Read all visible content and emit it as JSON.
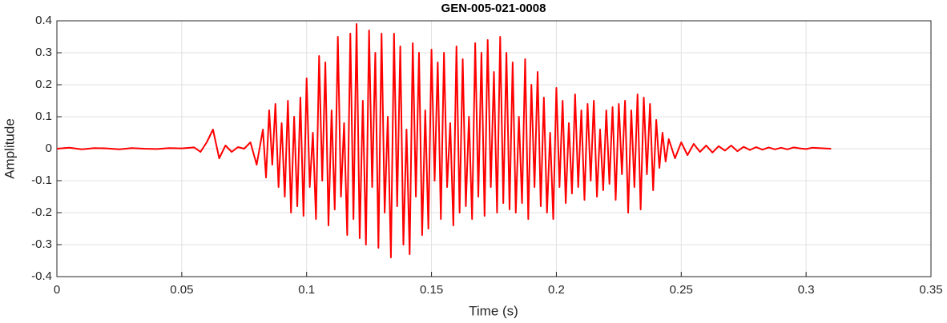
{
  "chart_data": {
    "type": "line",
    "title": "GEN-005-021-0008",
    "xlabel": "Time (s)",
    "ylabel": "Amplitude",
    "grid": true,
    "xlim": [
      0,
      0.35
    ],
    "xticks": [
      0,
      0.05,
      0.1,
      0.15,
      0.2,
      0.25,
      0.3,
      0.35
    ],
    "ylim": [
      -0.4,
      0.4
    ],
    "yticks": [
      -0.4,
      -0.3,
      -0.2,
      -0.1,
      0,
      0.1,
      0.2,
      0.3,
      0.4
    ],
    "x": [
      0,
      0.005,
      0.01,
      0.015,
      0.02,
      0.025,
      0.03,
      0.035,
      0.04,
      0.045,
      0.05,
      0.055,
      0.0575,
      0.06,
      0.0625,
      0.065,
      0.0675,
      0.07,
      0.0725,
      0.075,
      0.0775,
      0.08,
      0.0825,
      0.08375,
      0.085,
      0.08625,
      0.0875,
      0.08875,
      0.09,
      0.09125,
      0.0925,
      0.09375,
      0.095,
      0.09625,
      0.0975,
      0.09875,
      0.1,
      0.10125,
      0.1025,
      0.10375,
      0.105,
      0.10625,
      0.1075,
      0.10875,
      0.11,
      0.11125,
      0.1125,
      0.11375,
      0.115,
      0.11625,
      0.1175,
      0.11875,
      0.12,
      0.12125,
      0.1225,
      0.12375,
      0.125,
      0.12625,
      0.1275,
      0.12875,
      0.13,
      0.13125,
      0.1325,
      0.13375,
      0.135,
      0.13625,
      0.1375,
      0.13875,
      0.14,
      0.14125,
      0.1425,
      0.14375,
      0.145,
      0.14625,
      0.1475,
      0.14875,
      0.15,
      0.15125,
      0.1525,
      0.15375,
      0.155,
      0.15625,
      0.1575,
      0.15875,
      0.16,
      0.16125,
      0.1625,
      0.16375,
      0.165,
      0.16625,
      0.1675,
      0.16875,
      0.17,
      0.17125,
      0.1725,
      0.17375,
      0.175,
      0.17625,
      0.1775,
      0.17875,
      0.18,
      0.18125,
      0.1825,
      0.18375,
      0.185,
      0.18625,
      0.1875,
      0.18875,
      0.19,
      0.19125,
      0.1925,
      0.19375,
      0.195,
      0.19625,
      0.1975,
      0.19875,
      0.2,
      0.20125,
      0.2025,
      0.20375,
      0.205,
      0.20625,
      0.2075,
      0.20875,
      0.21,
      0.21125,
      0.2125,
      0.21375,
      0.215,
      0.21625,
      0.2175,
      0.21875,
      0.22,
      0.22125,
      0.2225,
      0.22375,
      0.225,
      0.22625,
      0.2275,
      0.22875,
      0.23,
      0.23125,
      0.2325,
      0.23375,
      0.235,
      0.23625,
      0.2375,
      0.23875,
      0.24,
      0.24125,
      0.2425,
      0.24375,
      0.245,
      0.2475,
      0.25,
      0.2525,
      0.255,
      0.2575,
      0.26,
      0.2625,
      0.265,
      0.2675,
      0.27,
      0.2725,
      0.275,
      0.2775,
      0.28,
      0.2825,
      0.285,
      0.2875,
      0.29,
      0.2925,
      0.295,
      0.2975,
      0.3,
      0.3025,
      0.305,
      0.3075,
      0.31
    ],
    "series": [
      {
        "name": "Amplitude",
        "color": "#ff0000",
        "values": [
          0,
          0.003,
          -0.002,
          0.002,
          0.001,
          -0.002,
          0.002,
          0,
          -0.001,
          0.002,
          0.001,
          0.004,
          -0.01,
          0.02,
          0.06,
          -0.03,
          0.01,
          -0.01,
          0.005,
          0,
          0.02,
          -0.05,
          0.06,
          -0.09,
          0.12,
          -0.05,
          0.14,
          -0.12,
          0.08,
          -0.15,
          0.15,
          -0.2,
          0.1,
          -0.18,
          0.16,
          -0.21,
          0.22,
          -0.12,
          0.05,
          -0.22,
          0.29,
          -0.1,
          0.27,
          -0.24,
          0.12,
          -0.19,
          0.35,
          -0.15,
          0.08,
          -0.27,
          0.36,
          -0.22,
          0.39,
          -0.28,
          0.15,
          -0.3,
          0.37,
          -0.12,
          0.3,
          -0.31,
          0.36,
          -0.2,
          0.1,
          -0.34,
          0.36,
          -0.18,
          0.32,
          -0.3,
          0.06,
          -0.33,
          0.33,
          -0.15,
          0.3,
          -0.27,
          0.12,
          -0.25,
          0.31,
          -0.1,
          0.27,
          -0.22,
          0.3,
          -0.12,
          0.08,
          -0.24,
          0.32,
          -0.2,
          0.28,
          -0.18,
          0.1,
          -0.22,
          0.33,
          -0.15,
          0.3,
          -0.21,
          0.34,
          -0.12,
          0.24,
          -0.2,
          0.35,
          -0.17,
          0.3,
          -0.19,
          0.27,
          -0.2,
          0.1,
          -0.17,
          0.28,
          -0.22,
          0.2,
          -0.12,
          0.24,
          -0.18,
          0.16,
          -0.2,
          0.05,
          -0.22,
          0.19,
          -0.12,
          0.15,
          -0.17,
          0.08,
          -0.14,
          0.17,
          -0.12,
          0.12,
          -0.16,
          0.14,
          -0.1,
          0.15,
          -0.15,
          0.06,
          -0.13,
          0.12,
          -0.11,
          0.13,
          -0.16,
          0.14,
          -0.08,
          0.15,
          -0.2,
          0.12,
          -0.12,
          0.17,
          -0.19,
          0.16,
          -0.08,
          0.14,
          -0.13,
          0.09,
          -0.06,
          0.05,
          -0.04,
          0.03,
          -0.03,
          0.02,
          -0.02,
          0.015,
          -0.01,
          0.01,
          -0.012,
          0.008,
          -0.006,
          0.01,
          -0.008,
          0.006,
          -0.004,
          0.005,
          -0.003,
          0.004,
          -0.002,
          0.003,
          -0.002,
          0.004,
          0.001,
          -0.001,
          0.003,
          0.002,
          0.001,
          0
        ]
      }
    ]
  }
}
